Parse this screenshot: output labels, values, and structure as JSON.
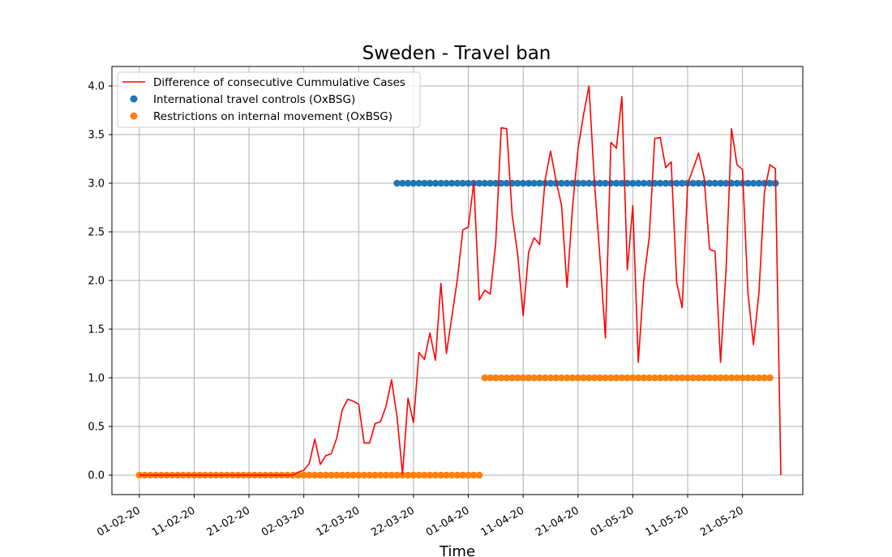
{
  "chart_data": {
    "type": "line",
    "title": "Sweden - Travel ban",
    "xlabel": "Time",
    "ylabel": "",
    "grid": true,
    "legend_position": "top-left",
    "x_start": "2020-02-01",
    "x_end": "2020-05-27",
    "xlim": [
      "2020-01-27",
      "2020-06-01"
    ],
    "ylim": [
      -0.2,
      4.2
    ],
    "x_ticks": [
      "01-02-20",
      "11-02-20",
      "21-02-20",
      "02-03-20",
      "12-03-20",
      "22-03-20",
      "01-04-20",
      "11-04-20",
      "21-04-20",
      "01-05-20",
      "11-05-20",
      "21-05-20"
    ],
    "y_ticks": [
      "0.0",
      "0.5",
      "1.0",
      "1.5",
      "2.0",
      "2.5",
      "3.0",
      "3.5",
      "4.0"
    ],
    "series": [
      {
        "name": "Difference of consecutive Cummulative Cases",
        "kind": "line",
        "color": "#ff0000",
        "x_start": "2020-02-01",
        "values": [
          0,
          0,
          0,
          0,
          0,
          0,
          0,
          0,
          0,
          0,
          0,
          0,
          0,
          0,
          0,
          0,
          0,
          0,
          0,
          0,
          0,
          0,
          0,
          0,
          0,
          0,
          0,
          0,
          0,
          0.03,
          0.05,
          0.12,
          0.37,
          0.11,
          0.2,
          0.22,
          0.38,
          0.67,
          0.78,
          0.76,
          0.73,
          0.33,
          0.33,
          0.53,
          0.55,
          0.71,
          0.98,
          0.6,
          0.01,
          0.79,
          0.54,
          1.26,
          1.19,
          1.46,
          1.18,
          1.97,
          1.25,
          1.63,
          2.01,
          2.52,
          2.55,
          3.01,
          1.8,
          1.9,
          1.86,
          2.39,
          3.57,
          3.56,
          2.67,
          2.27,
          1.64,
          2.29,
          2.44,
          2.37,
          3.03,
          3.33,
          3.03,
          2.77,
          1.93,
          2.75,
          3.35,
          3.7,
          4.0,
          3.01,
          2.24,
          1.41,
          3.42,
          3.36,
          3.89,
          2.11,
          2.77,
          1.16,
          2.0,
          2.45,
          3.46,
          3.47,
          3.16,
          3.22,
          1.98,
          1.72,
          2.99,
          3.15,
          3.31,
          3.06,
          2.32,
          2.3,
          1.16,
          2.11,
          3.56,
          3.19,
          3.14,
          1.87,
          1.34,
          1.87,
          2.91,
          3.19,
          3.15,
          0
        ]
      },
      {
        "name": "International travel controls (OxBSG)",
        "kind": "markers",
        "color": "#1f77b4",
        "x_start": "2020-03-19",
        "x_end": "2020-05-27",
        "value": 3
      },
      {
        "name": "Restrictions on internal movement (OxBSG)",
        "kind": "markers",
        "color": "#ff7f0e",
        "segments": [
          {
            "x_start": "2020-02-01",
            "x_end": "2020-04-03",
            "value": 0
          },
          {
            "x_start": "2020-04-04",
            "x_end": "2020-05-26",
            "value": 1
          }
        ]
      }
    ]
  }
}
